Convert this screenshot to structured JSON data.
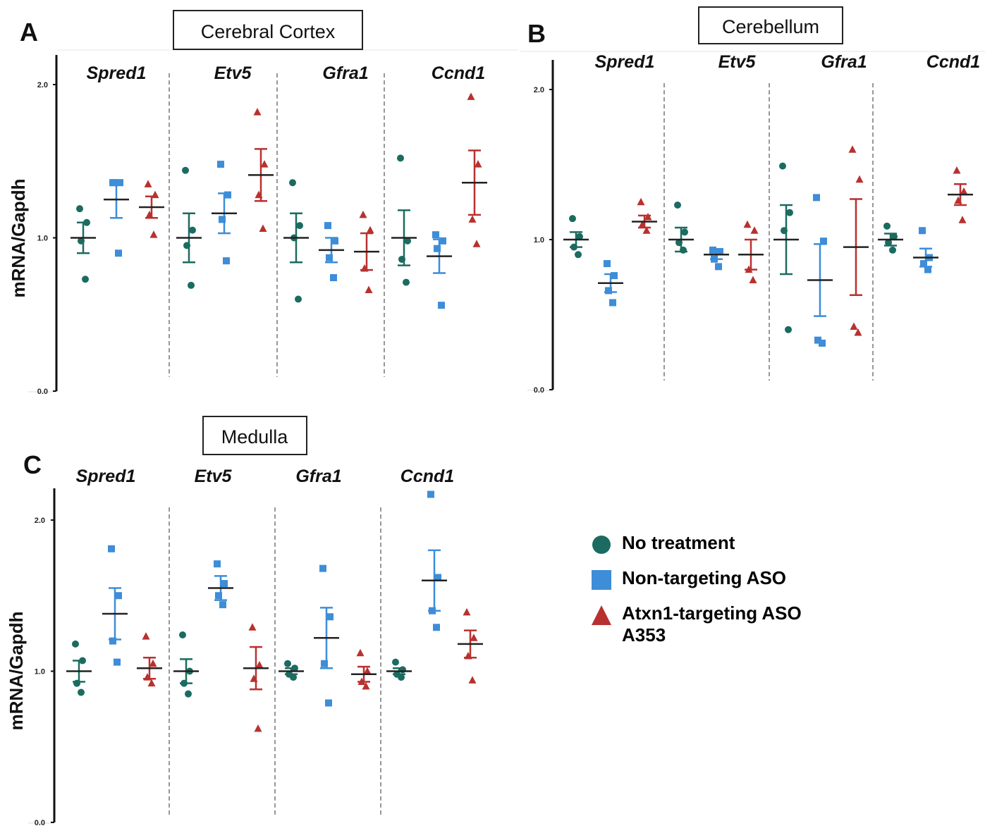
{
  "ylabel": "mRNA/Gapdh",
  "yticks": [
    "0.0",
    "1.0",
    "2.0"
  ],
  "ylim": [
    0,
    2.0
  ],
  "genes": [
    "Spred1",
    "Etv5",
    "Gfra1",
    "Ccnd1"
  ],
  "colors": {
    "No treatment": "#1b6b60",
    "Non-targeting ASO": "#3d8dd8",
    "Atxn1-targeting ASO A353": "#b8312f",
    "mean": "#222222"
  },
  "legend": {
    "items": [
      {
        "label": "No treatment",
        "symbol": "circle",
        "color": "#1b6b60"
      },
      {
        "label": "Non-targeting ASO",
        "symbol": "square",
        "color": "#3d8dd8"
      },
      {
        "label": "Atxn1-targeting ASO",
        "label2": "A353",
        "symbol": "triangle",
        "color": "#b8312f"
      }
    ]
  },
  "chart_data": [
    {
      "panel": "A",
      "title": "Cerebral Cortex",
      "type": "scatter",
      "ylabel": "mRNA/Gapdh",
      "ylim": [
        0,
        2.0
      ],
      "genes": [
        {
          "gene": "Spred1",
          "groups": [
            {
              "name": "No treatment",
              "points": [
                1.19,
                1.1,
                0.98,
                0.73
              ],
              "mean": 1.0,
              "sem": 0.1
            },
            {
              "name": "Non-targeting ASO",
              "points": [
                1.36,
                1.36,
                1.36,
                0.9
              ],
              "mean": 1.25,
              "sem": 0.12
            },
            {
              "name": "Atxn1-targeting ASO A353",
              "points": [
                1.35,
                1.28,
                1.15,
                1.02
              ],
              "mean": 1.2,
              "sem": 0.07
            }
          ]
        },
        {
          "gene": "Etv5",
          "groups": [
            {
              "name": "No treatment",
              "points": [
                1.44,
                1.05,
                0.95,
                0.69
              ],
              "mean": 1.0,
              "sem": 0.16
            },
            {
              "name": "Non-targeting ASO",
              "points": [
                1.48,
                1.28,
                1.12,
                0.85
              ],
              "mean": 1.16,
              "sem": 0.13
            },
            {
              "name": "Atxn1-targeting ASO A353",
              "points": [
                1.82,
                1.48,
                1.28,
                1.06
              ],
              "mean": 1.41,
              "sem": 0.17
            }
          ]
        },
        {
          "gene": "Gfra1",
          "groups": [
            {
              "name": "No treatment",
              "points": [
                1.36,
                1.08,
                1.0,
                0.6
              ],
              "mean": 1.0,
              "sem": 0.16
            },
            {
              "name": "Non-targeting ASO",
              "points": [
                1.08,
                0.98,
                0.87,
                0.74
              ],
              "mean": 0.92,
              "sem": 0.08
            },
            {
              "name": "Atxn1-targeting ASO A353",
              "points": [
                1.15,
                1.05,
                0.8,
                0.66
              ],
              "mean": 0.91,
              "sem": 0.12
            }
          ]
        },
        {
          "gene": "Ccnd1",
          "groups": [
            {
              "name": "No treatment",
              "points": [
                1.52,
                0.98,
                0.86,
                0.71
              ],
              "mean": 1.0,
              "sem": 0.18
            },
            {
              "name": "Non-targeting ASO",
              "points": [
                1.02,
                0.98,
                0.93,
                0.56
              ],
              "mean": 0.88,
              "sem": 0.11
            },
            {
              "name": "Atxn1-targeting ASO A353",
              "points": [
                1.92,
                1.48,
                1.12,
                0.96
              ],
              "mean": 1.36,
              "sem": 0.21
            }
          ]
        }
      ]
    },
    {
      "panel": "B",
      "title": "Cerebellum",
      "type": "scatter",
      "ylabel": "",
      "ylim": [
        0,
        2.0
      ],
      "genes": [
        {
          "gene": "Spred1",
          "groups": [
            {
              "name": "No treatment",
              "points": [
                1.14,
                1.02,
                0.95,
                0.9
              ],
              "mean": 1.0,
              "sem": 0.05
            },
            {
              "name": "Non-targeting ASO",
              "points": [
                0.84,
                0.76,
                0.66,
                0.58
              ],
              "mean": 0.71,
              "sem": 0.06
            },
            {
              "name": "Atxn1-targeting ASO A353",
              "points": [
                1.25,
                1.15,
                1.1,
                1.06
              ],
              "mean": 1.12,
              "sem": 0.04
            }
          ]
        },
        {
          "gene": "Etv5",
          "groups": [
            {
              "name": "No treatment",
              "points": [
                1.23,
                1.05,
                0.98,
                0.93
              ],
              "mean": 1.0,
              "sem": 0.08
            },
            {
              "name": "Non-targeting ASO",
              "points": [
                0.93,
                0.92,
                0.87,
                0.82
              ],
              "mean": 0.9,
              "sem": 0.03
            },
            {
              "name": "Atxn1-targeting ASO A353",
              "points": [
                1.1,
                1.06,
                0.8,
                0.73
              ],
              "mean": 0.9,
              "sem": 0.1
            }
          ]
        },
        {
          "gene": "Gfra1",
          "groups": [
            {
              "name": "No treatment",
              "points": [
                1.49,
                1.18,
                1.06,
                0.4
              ],
              "mean": 1.0,
              "sem": 0.23
            },
            {
              "name": "Non-targeting ASO",
              "points": [
                1.28,
                0.99,
                0.33,
                0.31
              ],
              "mean": 0.73,
              "sem": 0.24
            },
            {
              "name": "Atxn1-targeting ASO A353",
              "points": [
                1.6,
                1.4,
                0.42,
                0.38
              ],
              "mean": 0.95,
              "sem": 0.32
            }
          ]
        },
        {
          "gene": "Ccnd1",
          "groups": [
            {
              "name": "No treatment",
              "points": [
                1.09,
                1.02,
                0.98,
                0.93
              ],
              "mean": 1.0,
              "sem": 0.04
            },
            {
              "name": "Non-targeting ASO",
              "points": [
                1.06,
                0.88,
                0.84,
                0.8
              ],
              "mean": 0.88,
              "sem": 0.06
            },
            {
              "name": "Atxn1-targeting ASO A353",
              "points": [
                1.46,
                1.32,
                1.26,
                1.13
              ],
              "mean": 1.3,
              "sem": 0.07
            }
          ]
        }
      ]
    },
    {
      "panel": "C",
      "title": "Medulla",
      "type": "scatter",
      "ylabel": "mRNA/Gapdh",
      "ylim": [
        0,
        2.0
      ],
      "genes": [
        {
          "gene": "Spred1",
          "groups": [
            {
              "name": "No treatment",
              "points": [
                1.18,
                1.07,
                0.92,
                0.86
              ],
              "mean": 1.0,
              "sem": 0.07
            },
            {
              "name": "Non-targeting ASO",
              "points": [
                1.81,
                1.5,
                1.2,
                1.06
              ],
              "mean": 1.38,
              "sem": 0.17
            },
            {
              "name": "Atxn1-targeting ASO A353",
              "points": [
                1.23,
                1.05,
                0.96,
                0.92
              ],
              "mean": 1.02,
              "sem": 0.07
            }
          ]
        },
        {
          "gene": "Etv5",
          "groups": [
            {
              "name": "No treatment",
              "points": [
                1.24,
                1.0,
                0.92,
                0.85
              ],
              "mean": 1.0,
              "sem": 0.08
            },
            {
              "name": "Non-targeting ASO",
              "points": [
                1.71,
                1.58,
                1.5,
                1.44
              ],
              "mean": 1.55,
              "sem": 0.08
            },
            {
              "name": "Atxn1-targeting ASO A353",
              "points": [
                1.29,
                1.04,
                0.95,
                0.62
              ],
              "mean": 1.02,
              "sem": 0.14
            }
          ]
        },
        {
          "gene": "Gfra1",
          "groups": [
            {
              "name": "No treatment",
              "points": [
                1.05,
                1.02,
                0.98,
                0.96
              ],
              "mean": 1.0,
              "sem": 0.02
            },
            {
              "name": "Non-targeting ASO",
              "points": [
                1.68,
                1.36,
                1.05,
                0.79
              ],
              "mean": 1.22,
              "sem": 0.2
            },
            {
              "name": "Atxn1-targeting ASO A353",
              "points": [
                1.12,
                1.0,
                0.93,
                0.9
              ],
              "mean": 0.98,
              "sem": 0.05
            }
          ]
        },
        {
          "gene": "Ccnd1",
          "groups": [
            {
              "name": "No treatment",
              "points": [
                1.06,
                1.01,
                0.98,
                0.96
              ],
              "mean": 1.0,
              "sem": 0.02
            },
            {
              "name": "Non-targeting ASO",
              "points": [
                2.17,
                1.62,
                1.4,
                1.29
              ],
              "mean": 1.6,
              "sem": 0.2
            },
            {
              "name": "Atxn1-targeting ASO A353",
              "points": [
                1.39,
                1.22,
                1.1,
                0.94
              ],
              "mean": 1.18,
              "sem": 0.09
            }
          ]
        }
      ]
    }
  ]
}
